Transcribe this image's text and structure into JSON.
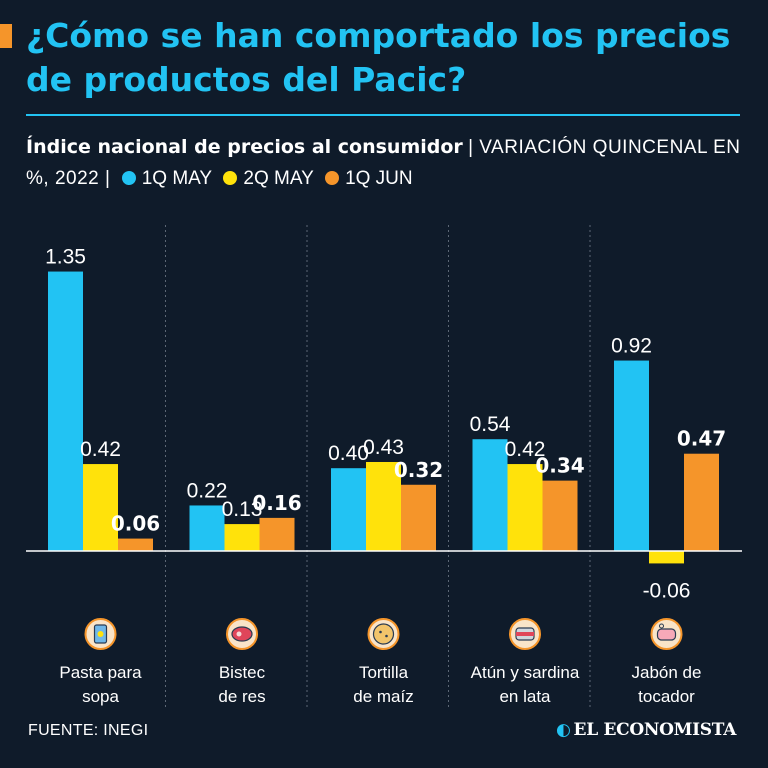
{
  "header": {
    "title": "¿Cómo se han comportado los precios de productos del Pacic?",
    "subtitle_strong": "Índice nacional de precios al consumidor",
    "subtitle_rest": "| VARIACIÓN QUINCENAL EN %, 2022 |"
  },
  "legend": [
    {
      "label": "1Q MAY",
      "color": "#22c3f3"
    },
    {
      "label": "2Q MAY",
      "color": "#ffe20b"
    },
    {
      "label": "1Q JUN",
      "color": "#f5952a"
    }
  ],
  "chart_data": {
    "type": "bar",
    "categories": [
      "Pasta para sopa",
      "Bistec de res",
      "Tortilla de maíz",
      "Atún y sardina en lata",
      "Jabón de tocador"
    ],
    "category_lines": [
      [
        "Pasta para",
        "sopa"
      ],
      [
        "Bistec",
        "de res"
      ],
      [
        "Tortilla",
        "de maíz"
      ],
      [
        "Atún y sardina",
        "en lata"
      ],
      [
        "Jabón de",
        "tocador"
      ]
    ],
    "category_icons": [
      "pasta-icon",
      "steak-icon",
      "tortilla-icon",
      "canned-fish-icon",
      "soap-icon"
    ],
    "series": [
      {
        "name": "1Q MAY",
        "color": "#22c3f3",
        "values": [
          1.35,
          0.22,
          0.4,
          0.54,
          0.92
        ],
        "labels": [
          "1.35",
          "0.22",
          "0.40",
          "0.54",
          "0.92"
        ]
      },
      {
        "name": "2Q MAY",
        "color": "#ffe20b",
        "values": [
          0.42,
          0.13,
          0.43,
          0.42,
          -0.06
        ],
        "labels": [
          "0.42",
          "0.13",
          "0.43",
          "0.42",
          "-0.06"
        ]
      },
      {
        "name": "1Q JUN",
        "color": "#f5952a",
        "values": [
          0.06,
          0.16,
          0.32,
          0.34,
          0.47
        ],
        "labels": [
          "0.06",
          "0.16",
          "0.32",
          "0.34",
          "0.47"
        ]
      }
    ],
    "ylim": [
      -0.1,
      1.4
    ],
    "grid": false,
    "legend_position": "top"
  },
  "footer": {
    "source": "FUENTE: INEGI",
    "brand": "EL ECONOMISTA"
  }
}
